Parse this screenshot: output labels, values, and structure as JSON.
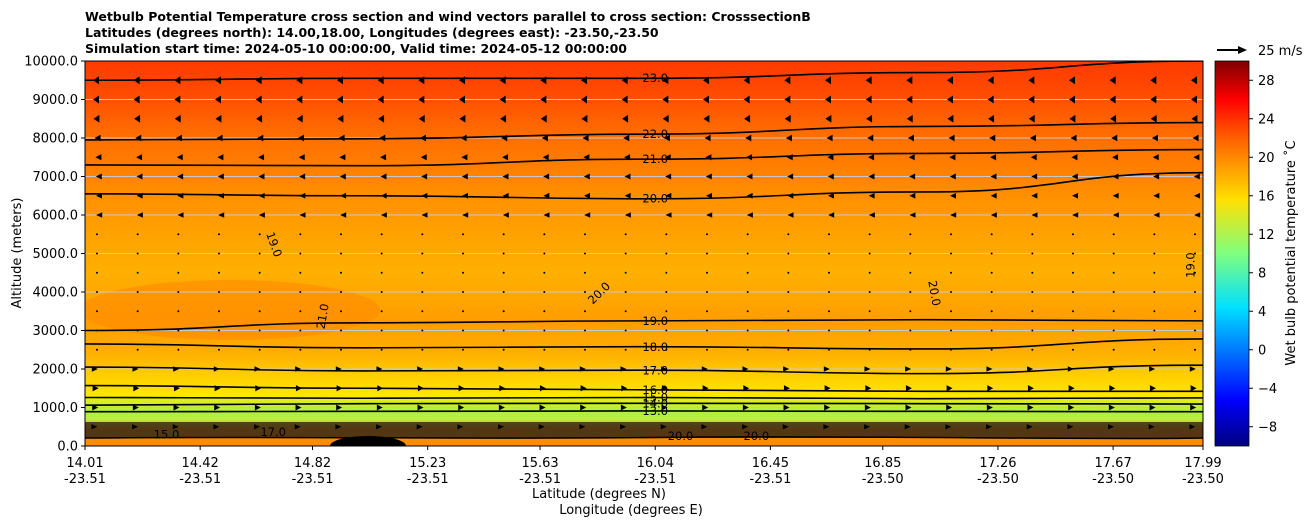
{
  "chart_data": {
    "type": "contour",
    "title_lines": [
      "Wetbulb Potential Temperature cross section and wind vectors parallel to cross section: CrosssectionB",
      "Latitudes (degrees north): 14.00,18.00, Longitudes (degrees east): -23.50,-23.50",
      "Simulation start time: 2024-05-10 00:00:00, Valid time: 2024-05-12 00:00:00"
    ],
    "ylabel": "Altitude (meters)",
    "xlabel": "Latitude (degrees N)",
    "xlabel2": "Longitude (degrees E)",
    "ylim": [
      0,
      10000
    ],
    "yticks": [
      "0.0",
      "1000.0",
      "2000.0",
      "3000.0",
      "4000.0",
      "5000.0",
      "6000.0",
      "7000.0",
      "8000.0",
      "9000.0",
      "10000.0"
    ],
    "xticks": [
      {
        "lat": "14.01",
        "lon": "-23.51"
      },
      {
        "lat": "14.42",
        "lon": "-23.51"
      },
      {
        "lat": "14.82",
        "lon": "-23.51"
      },
      {
        "lat": "15.23",
        "lon": "-23.51"
      },
      {
        "lat": "15.63",
        "lon": "-23.51"
      },
      {
        "lat": "16.04",
        "lon": "-23.51"
      },
      {
        "lat": "16.45",
        "lon": "-23.51"
      },
      {
        "lat": "16.85",
        "lon": "-23.50"
      },
      {
        "lat": "17.26",
        "lon": "-23.50"
      },
      {
        "lat": "17.67",
        "lon": "-23.50"
      },
      {
        "lat": "17.99",
        "lon": "-23.50"
      }
    ],
    "grid": "horizontal",
    "colorbar": {
      "label": "Wet bulb potential temperature ˚C",
      "min": -10,
      "max": 30,
      "ticks": [
        "28",
        "24",
        "20",
        "16",
        "12",
        "8",
        "4",
        "0",
        "−4",
        "−8"
      ],
      "colormap": "jet"
    },
    "vector_key": "25 m/s",
    "contours": [
      {
        "level": 13.0,
        "label": "13.0",
        "x": [
          14.01,
          15.0,
          16.0,
          17.0,
          17.99
        ],
        "y": [
          890,
          900,
          910,
          900,
          890
        ]
      },
      {
        "level": 14.0,
        "label": "14.0",
        "x": [
          14.01,
          15.0,
          16.0,
          17.0,
          17.99
        ],
        "y": [
          1060,
          1100,
          1110,
          1100,
          1090
        ]
      },
      {
        "level": 15.0,
        "label": "15.0",
        "x": [
          14.01,
          15.0,
          16.0,
          17.0,
          17.99
        ],
        "y": [
          1260,
          1240,
          1260,
          1230,
          1250
        ]
      },
      {
        "level": 16.0,
        "label": "16.0",
        "x": [
          14.01,
          15.0,
          16.0,
          17.0,
          17.99
        ],
        "y": [
          1570,
          1500,
          1460,
          1420,
          1420
        ]
      },
      {
        "level": 17.0,
        "label": "17.0",
        "x": [
          14.01,
          15.0,
          16.0,
          17.0,
          17.99
        ],
        "y": [
          2050,
          1950,
          1970,
          1880,
          2100
        ]
      },
      {
        "level": 18.0,
        "label": "18.0",
        "x": [
          14.01,
          15.0,
          16.0,
          17.0,
          17.99
        ],
        "y": [
          2650,
          2550,
          2580,
          2520,
          2780
        ]
      },
      {
        "level": 19.0,
        "label": "19.0",
        "x": [
          14.01,
          15.0,
          16.0,
          17.0,
          17.99
        ],
        "y": [
          3000,
          3200,
          3250,
          3280,
          3250
        ]
      },
      {
        "level": 20.0,
        "label": "20.0",
        "x": [
          14.01,
          15.0,
          16.0,
          17.0,
          17.99
        ],
        "y": [
          6550,
          6500,
          6420,
          6600,
          7100
        ]
      },
      {
        "level": 21.0,
        "label": "21.0",
        "x": [
          14.01,
          15.0,
          16.0,
          17.0,
          17.99
        ],
        "y": [
          7300,
          7280,
          7450,
          7600,
          7700
        ]
      },
      {
        "level": 22.0,
        "label": "22.0",
        "x": [
          14.01,
          15.0,
          16.0,
          17.0,
          17.99
        ],
        "y": [
          7950,
          7980,
          8100,
          8300,
          8400
        ]
      },
      {
        "level": 23.0,
        "label": "23.0",
        "x": [
          14.01,
          15.0,
          16.0,
          17.0,
          17.99
        ],
        "y": [
          9500,
          9550,
          9550,
          9700,
          10000
        ]
      }
    ],
    "extra_labels": [
      {
        "text": "19.0",
        "x": 14.67,
        "y": 5200,
        "rot": 70
      },
      {
        "text": "20.0",
        "x": 15.85,
        "y": 3900,
        "rot": -45
      },
      {
        "text": "21.0",
        "x": 14.87,
        "y": 3350,
        "rot": -80
      },
      {
        "text": "20.0",
        "x": 17.02,
        "y": 3950,
        "rot": 80
      },
      {
        "text": "19.0",
        "x": 17.96,
        "y": 4700,
        "rot": -90
      },
      {
        "text": "20.0",
        "x": 16.13,
        "y": 150,
        "rot": 0
      },
      {
        "text": "20.0",
        "x": 16.4,
        "y": 150,
        "rot": 0
      },
      {
        "text": "15.0",
        "x": 14.3,
        "y": 200,
        "rot": 0
      },
      {
        "text": "17.0",
        "x": 14.68,
        "y": 260,
        "rot": 0
      }
    ]
  }
}
